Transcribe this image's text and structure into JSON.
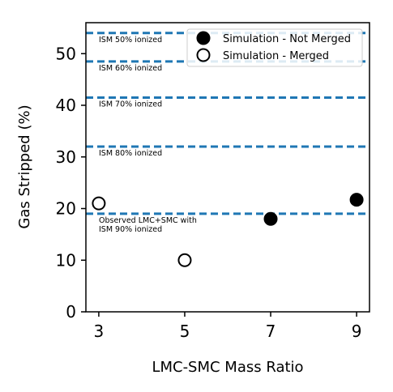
{
  "chart_data": {
    "type": "scatter",
    "xlabel": "LMC-SMC Mass Ratio",
    "ylabel": "Gas Stripped (%)",
    "xlim": [
      2.7,
      9.3
    ],
    "ylim": [
      0,
      56
    ],
    "xticks": [
      3,
      5,
      7,
      9
    ],
    "yticks": [
      0,
      10,
      20,
      30,
      40,
      50
    ],
    "grid": false,
    "legend_placement": "top-right",
    "series": [
      {
        "name": "Simulation - Not Merged",
        "marker": "filled-circle",
        "color": "#000000",
        "points": [
          {
            "x": 7,
            "y": 18
          },
          {
            "x": 9,
            "y": 21.7
          }
        ]
      },
      {
        "name": "Simulation - Merged",
        "marker": "open-circle",
        "color": "#000000",
        "points": [
          {
            "x": 3,
            "y": 21
          },
          {
            "x": 5,
            "y": 10
          }
        ]
      }
    ],
    "reference_lines": [
      {
        "y": 54,
        "lines": [
          "ISM 50% ionized"
        ]
      },
      {
        "y": 48.5,
        "lines": [
          "ISM 60% ionized"
        ]
      },
      {
        "y": 41.5,
        "lines": [
          "ISM 70% ionized"
        ]
      },
      {
        "y": 32,
        "lines": [
          "ISM 80% ionized"
        ]
      },
      {
        "y": 19,
        "lines": [
          "Observed LMC+SMC with",
          "ISM 90% ionized"
        ]
      }
    ],
    "reference_line_color": "#1f77b4"
  }
}
